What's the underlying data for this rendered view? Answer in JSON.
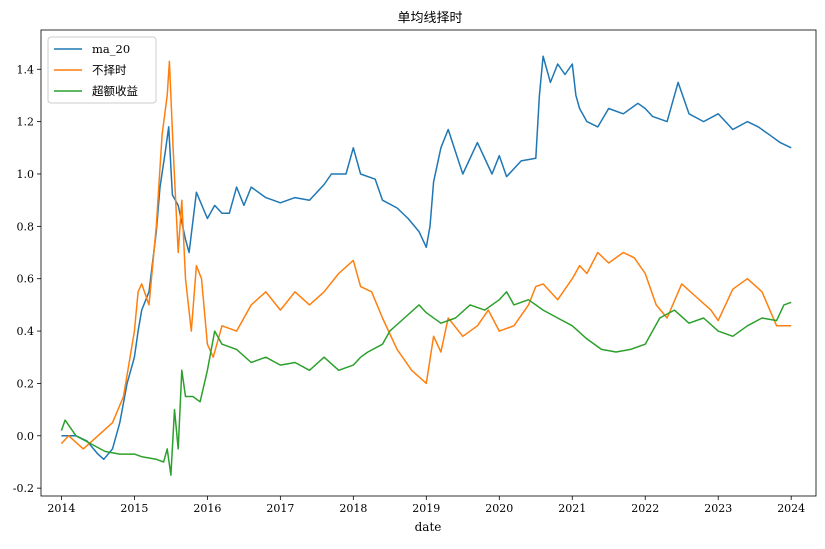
{
  "chart_data": {
    "type": "line",
    "title": "单均线择时",
    "xlabel": "date",
    "ylabel": "",
    "xlim": [
      2013.72,
      2024.34
    ],
    "ylim": [
      -0.23,
      1.55
    ],
    "x_ticks": [
      2014,
      2015,
      2016,
      2017,
      2018,
      2019,
      2020,
      2021,
      2022,
      2023,
      2024
    ],
    "x_tick_labels": [
      "2014",
      "2015",
      "2016",
      "2017",
      "2018",
      "2019",
      "2020",
      "2021",
      "2022",
      "2023",
      "2024"
    ],
    "y_ticks": [
      -0.2,
      0.0,
      0.2,
      0.4,
      0.6,
      0.8,
      1.0,
      1.2,
      1.4
    ],
    "y_tick_labels": [
      "-0.2",
      "0.0",
      "0.2",
      "0.4",
      "0.6",
      "0.8",
      "1.0",
      "1.2",
      "1.4"
    ],
    "grid": false,
    "legend_position": "top-left",
    "series": [
      {
        "name": "ma_20",
        "color": "#1f77b4",
        "x": [
          2014.0,
          2014.2,
          2014.35,
          2014.5,
          2014.58,
          2014.7,
          2014.8,
          2014.9,
          2015.0,
          2015.05,
          2015.1,
          2015.2,
          2015.3,
          2015.35,
          2015.42,
          2015.47,
          2015.52,
          2015.6,
          2015.7,
          2015.75,
          2015.85,
          2016.0,
          2016.1,
          2016.2,
          2016.3,
          2016.4,
          2016.5,
          2016.6,
          2016.8,
          2017.0,
          2017.2,
          2017.4,
          2017.6,
          2017.7,
          2017.9,
          2018.0,
          2018.1,
          2018.3,
          2018.4,
          2018.6,
          2018.75,
          2018.9,
          2019.0,
          2019.05,
          2019.1,
          2019.2,
          2019.3,
          2019.5,
          2019.7,
          2019.9,
          2020.0,
          2020.1,
          2020.3,
          2020.5,
          2020.55,
          2020.6,
          2020.7,
          2020.8,
          2020.9,
          2021.0,
          2021.05,
          2021.1,
          2021.2,
          2021.35,
          2021.5,
          2021.7,
          2021.9,
          2022.0,
          2022.1,
          2022.3,
          2022.45,
          2022.6,
          2022.8,
          2023.0,
          2023.2,
          2023.4,
          2023.55,
          2023.7,
          2023.85,
          2024.0
        ],
        "y": [
          0.0,
          0.0,
          -0.02,
          -0.07,
          -0.09,
          -0.05,
          0.05,
          0.2,
          0.3,
          0.4,
          0.48,
          0.55,
          0.78,
          0.95,
          1.08,
          1.18,
          0.92,
          0.88,
          0.75,
          0.7,
          0.93,
          0.83,
          0.88,
          0.85,
          0.85,
          0.95,
          0.88,
          0.95,
          0.91,
          0.89,
          0.91,
          0.9,
          0.96,
          1.0,
          1.0,
          1.1,
          1.0,
          0.98,
          0.9,
          0.87,
          0.83,
          0.78,
          0.72,
          0.8,
          0.97,
          1.1,
          1.17,
          1.0,
          1.12,
          1.0,
          1.07,
          0.99,
          1.05,
          1.06,
          1.3,
          1.45,
          1.35,
          1.42,
          1.38,
          1.42,
          1.3,
          1.25,
          1.2,
          1.18,
          1.25,
          1.23,
          1.27,
          1.25,
          1.22,
          1.2,
          1.35,
          1.23,
          1.2,
          1.23,
          1.17,
          1.2,
          1.18,
          1.15,
          1.12,
          1.1
        ]
      },
      {
        "name": "不择时",
        "color": "#ff7f0e",
        "x": [
          2014.0,
          2014.1,
          2014.3,
          2014.5,
          2014.7,
          2014.85,
          2015.0,
          2015.05,
          2015.1,
          2015.2,
          2015.3,
          2015.38,
          2015.45,
          2015.48,
          2015.53,
          2015.6,
          2015.65,
          2015.7,
          2015.78,
          2015.85,
          2015.92,
          2016.0,
          2016.08,
          2016.2,
          2016.4,
          2016.6,
          2016.8,
          2017.0,
          2017.2,
          2017.4,
          2017.6,
          2017.8,
          2018.0,
          2018.1,
          2018.25,
          2018.4,
          2018.6,
          2018.8,
          2019.0,
          2019.1,
          2019.2,
          2019.3,
          2019.5,
          2019.7,
          2019.85,
          2020.0,
          2020.2,
          2020.4,
          2020.5,
          2020.6,
          2020.8,
          2021.0,
          2021.1,
          2021.2,
          2021.35,
          2021.5,
          2021.7,
          2021.85,
          2022.0,
          2022.15,
          2022.3,
          2022.5,
          2022.7,
          2022.9,
          2023.0,
          2023.2,
          2023.4,
          2023.6,
          2023.8,
          2024.0
        ],
        "y": [
          -0.03,
          0.0,
          -0.05,
          0.0,
          0.05,
          0.15,
          0.4,
          0.55,
          0.58,
          0.5,
          0.8,
          1.15,
          1.3,
          1.43,
          1.1,
          0.7,
          0.9,
          0.6,
          0.4,
          0.65,
          0.6,
          0.35,
          0.3,
          0.42,
          0.4,
          0.5,
          0.55,
          0.48,
          0.55,
          0.5,
          0.55,
          0.62,
          0.67,
          0.57,
          0.55,
          0.45,
          0.33,
          0.25,
          0.2,
          0.38,
          0.32,
          0.45,
          0.38,
          0.42,
          0.48,
          0.4,
          0.42,
          0.5,
          0.57,
          0.58,
          0.52,
          0.6,
          0.65,
          0.62,
          0.7,
          0.66,
          0.7,
          0.68,
          0.62,
          0.5,
          0.45,
          0.58,
          0.53,
          0.48,
          0.44,
          0.56,
          0.6,
          0.55,
          0.42,
          0.42
        ]
      },
      {
        "name": "超额收益",
        "color": "#2ca02c",
        "x": [
          2014.0,
          2014.05,
          2014.2,
          2014.4,
          2014.6,
          2014.8,
          2015.0,
          2015.1,
          2015.3,
          2015.4,
          2015.45,
          2015.5,
          2015.55,
          2015.6,
          2015.65,
          2015.7,
          2015.8,
          2015.9,
          2016.0,
          2016.1,
          2016.2,
          2016.4,
          2016.6,
          2016.8,
          2017.0,
          2017.2,
          2017.4,
          2017.6,
          2017.8,
          2018.0,
          2018.1,
          2018.2,
          2018.4,
          2018.5,
          2018.7,
          2018.9,
          2019.0,
          2019.2,
          2019.4,
          2019.6,
          2019.8,
          2020.0,
          2020.1,
          2020.2,
          2020.4,
          2020.6,
          2020.8,
          2021.0,
          2021.2,
          2021.4,
          2021.6,
          2021.8,
          2022.0,
          2022.1,
          2022.2,
          2022.4,
          2022.6,
          2022.8,
          2023.0,
          2023.2,
          2023.4,
          2023.6,
          2023.8,
          2023.9,
          2024.0
        ],
        "y": [
          0.02,
          0.06,
          0.0,
          -0.03,
          -0.06,
          -0.07,
          -0.07,
          -0.08,
          -0.09,
          -0.1,
          -0.05,
          -0.15,
          0.1,
          -0.05,
          0.25,
          0.15,
          0.15,
          0.13,
          0.25,
          0.4,
          0.35,
          0.33,
          0.28,
          0.3,
          0.27,
          0.28,
          0.25,
          0.3,
          0.25,
          0.27,
          0.3,
          0.32,
          0.35,
          0.4,
          0.45,
          0.5,
          0.47,
          0.43,
          0.45,
          0.5,
          0.48,
          0.52,
          0.55,
          0.5,
          0.52,
          0.48,
          0.45,
          0.42,
          0.37,
          0.33,
          0.32,
          0.33,
          0.35,
          0.4,
          0.45,
          0.48,
          0.43,
          0.45,
          0.4,
          0.38,
          0.42,
          0.45,
          0.44,
          0.5,
          0.51
        ]
      }
    ]
  }
}
